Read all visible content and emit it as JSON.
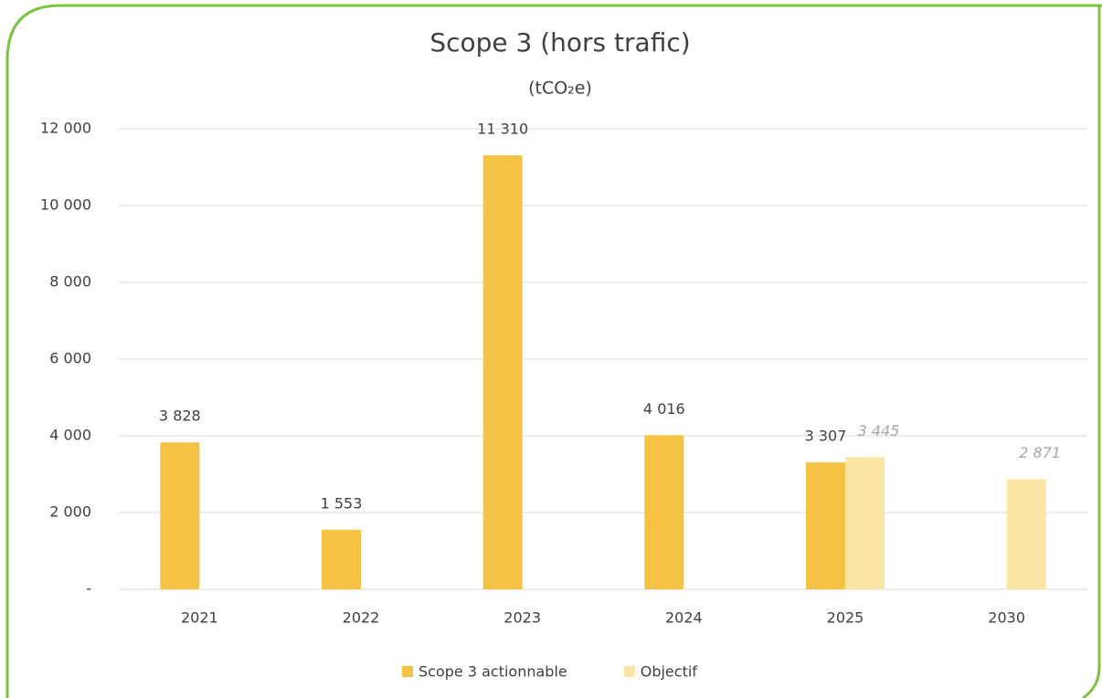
{
  "chart_data": {
    "type": "bar",
    "title": "Scope 3 (hors trafic)",
    "subtitle": "(tCO₂e)",
    "categories": [
      "2021",
      "2022",
      "2023",
      "2024",
      "2025",
      "2030"
    ],
    "series": [
      {
        "name": "Scope 3 actionnable",
        "color": "#f4c244",
        "values": [
          3828,
          1553,
          11310,
          4016,
          3307,
          null
        ],
        "value_labels": [
          "3 828",
          "1 553",
          "11 310",
          "4 016",
          "3 307",
          null
        ]
      },
      {
        "name": "Objectif",
        "color": "#fbe5a6",
        "values": [
          null,
          null,
          null,
          null,
          3445,
          2871
        ],
        "value_labels": [
          null,
          null,
          null,
          null,
          "3 445",
          "2 871"
        ]
      }
    ],
    "ylim": [
      0,
      12000
    ],
    "yticks": [
      {
        "value": 0,
        "label": "-"
      },
      {
        "value": 2000,
        "label": "2 000"
      },
      {
        "value": 4000,
        "label": "4 000"
      },
      {
        "value": 6000,
        "label": "6 000"
      },
      {
        "value": 8000,
        "label": "8 000"
      },
      {
        "value": 10000,
        "label": "10 000"
      },
      {
        "value": 12000,
        "label": "12 000"
      }
    ],
    "grid": true,
    "legend": "bottom"
  }
}
